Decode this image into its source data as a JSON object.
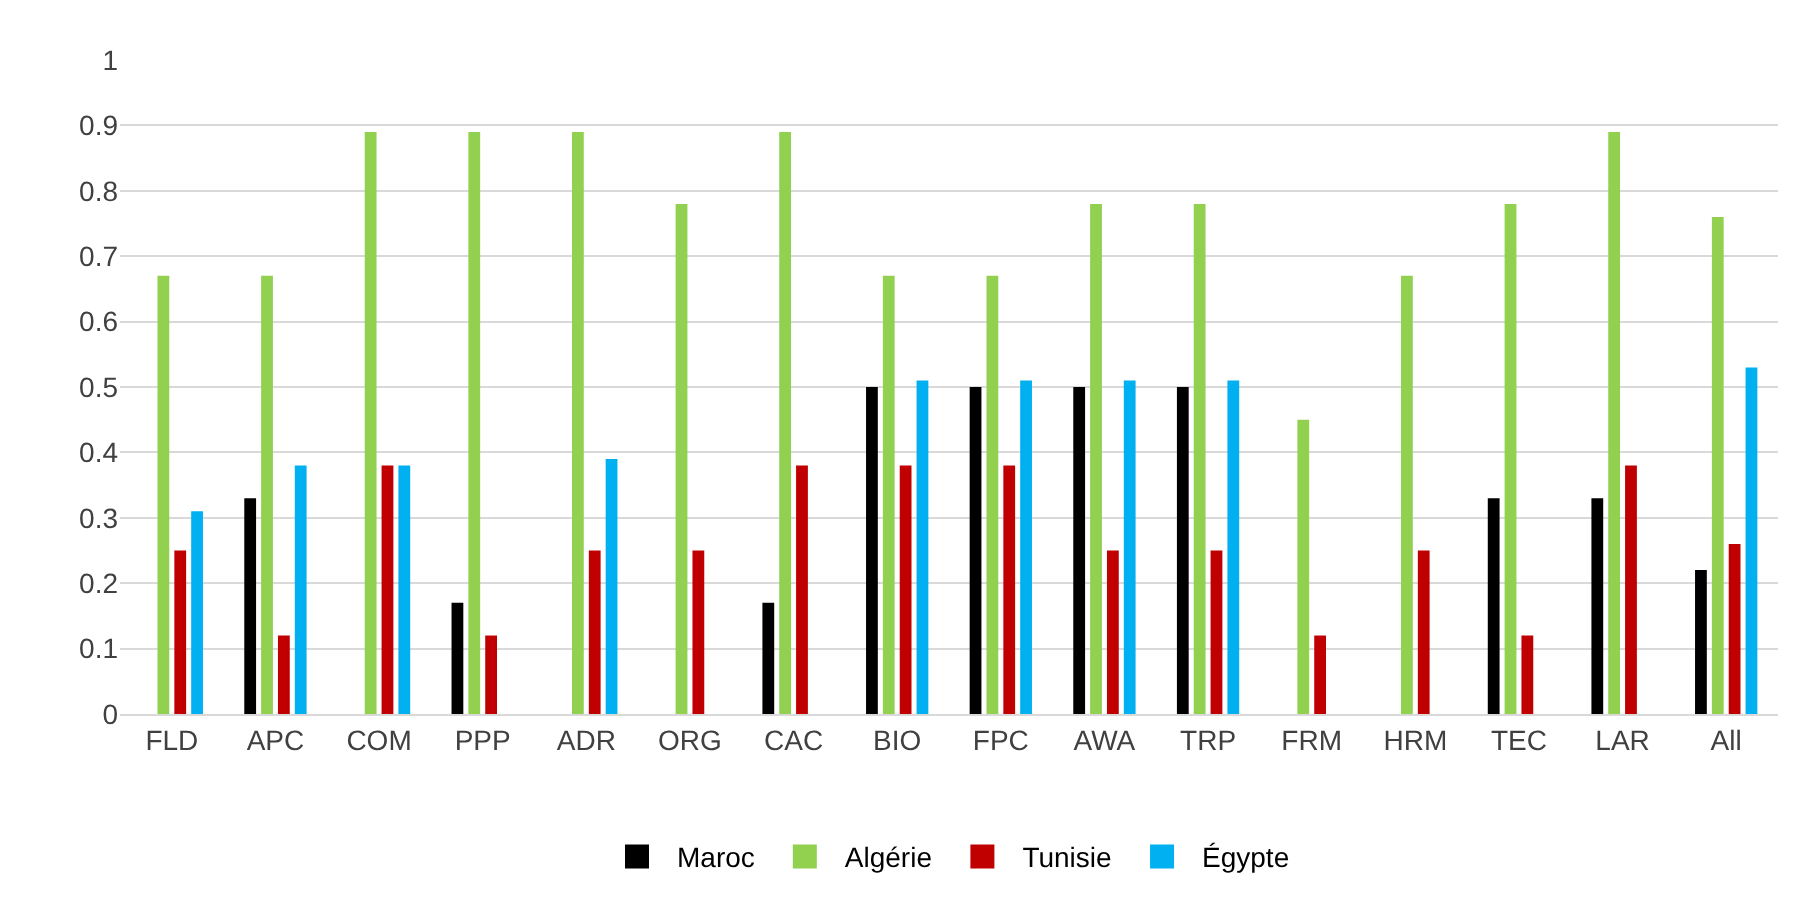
{
  "chart_data": {
    "type": "bar",
    "categories": [
      "FLD",
      "APC",
      "COM",
      "PPP",
      "ADR",
      "ORG",
      "CAC",
      "BIO",
      "FPC",
      "AWA",
      "TRP",
      "FRM",
      "HRM",
      "TEC",
      "LAR",
      "All"
    ],
    "series": [
      {
        "name": "Maroc",
        "color": "#000000",
        "values": [
          0,
          0.33,
          0,
          0.17,
          0,
          0,
          0.17,
          0.5,
          0.5,
          0.5,
          0.5,
          0,
          0,
          0.33,
          0.33,
          0.22
        ]
      },
      {
        "name": "Algérie",
        "color": "#92d050",
        "values": [
          0.67,
          0.67,
          0.89,
          0.89,
          0.89,
          0.78,
          0.89,
          0.67,
          0.67,
          0.78,
          0.78,
          0.45,
          0.67,
          0.78,
          0.89,
          0.76
        ]
      },
      {
        "name": "Tunisie",
        "color": "#c00000",
        "values": [
          0.25,
          0.12,
          0.38,
          0.12,
          0.25,
          0.25,
          0.38,
          0.38,
          0.38,
          0.25,
          0.25,
          0.12,
          0.25,
          0.12,
          0.38,
          0.26
        ]
      },
      {
        "name": "Égypte",
        "color": "#00b0f0",
        "values": [
          0.31,
          0.38,
          0.38,
          0,
          0.39,
          0,
          0,
          0.51,
          0.51,
          0.51,
          0.51,
          0,
          0,
          0,
          0,
          0.53
        ]
      }
    ],
    "ylim": [
      0,
      1
    ],
    "yticks": [
      0,
      0.1,
      0.2,
      0.3,
      0.4,
      0.5,
      0.6,
      0.7,
      0.8,
      0.9,
      1
    ],
    "grid": "y",
    "legend": "bottom"
  }
}
